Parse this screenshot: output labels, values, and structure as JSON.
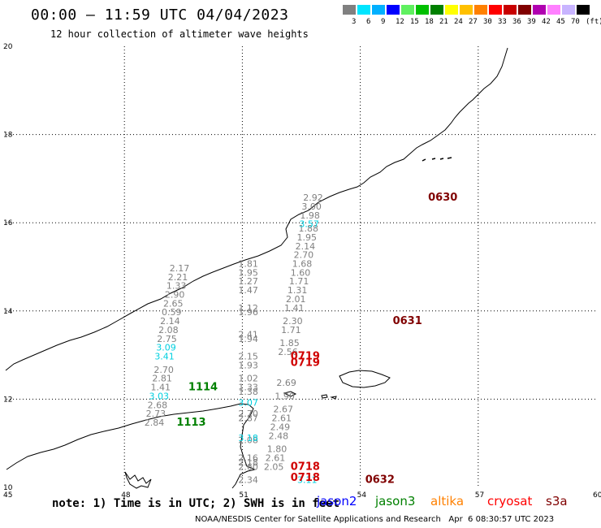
{
  "title": "00:00 – 11:59 UTC 04/04/2023",
  "subtitle": "12 hour collection of altimeter wave heights",
  "colorbar": {
    "colors": [
      "#808080",
      "#00e5ff",
      "#00b0ff",
      "#0000ff",
      "#5ff05f",
      "#00c000",
      "#008000",
      "#ffff00",
      "#ffc000",
      "#ff8000",
      "#ff0000",
      "#c80000",
      "#800000",
      "#b000b0",
      "#ff80ff",
      "#c8b4ff",
      "#000000"
    ],
    "labels": [
      "3",
      "6",
      "9",
      "12",
      "15",
      "18",
      "21",
      "24",
      "27",
      "30",
      "33",
      "36",
      "39",
      "42",
      "45",
      "70",
      "(ft)"
    ]
  },
  "axes": {
    "x_ticks": [
      "45",
      "48",
      "51",
      "54",
      "57",
      "60"
    ],
    "y_ticks": [
      "20",
      "18",
      "16",
      "14",
      "12",
      "10"
    ],
    "xlim": [
      45,
      60
    ],
    "ylim": [
      10,
      20
    ]
  },
  "tracks": [
    {
      "satellite": "cryosat",
      "color": "#808080",
      "points": [
        {
          "lon": 52.8,
          "lat": 16.5,
          "v": "2.92"
        },
        {
          "lon": 52.76,
          "lat": 16.3,
          "v": "3.00"
        },
        {
          "lon": 52.72,
          "lat": 16.1,
          "v": "1.98"
        },
        {
          "lon": 52.68,
          "lat": 15.8,
          "v": "1.88"
        },
        {
          "lon": 52.64,
          "lat": 15.6,
          "v": "1.95"
        },
        {
          "lon": 52.6,
          "lat": 15.4,
          "v": "2.14"
        },
        {
          "lon": 52.56,
          "lat": 15.2,
          "v": "2.70"
        },
        {
          "lon": 52.52,
          "lat": 15.0,
          "v": "1.68"
        },
        {
          "lon": 52.48,
          "lat": 14.8,
          "v": "1.60"
        },
        {
          "lon": 52.44,
          "lat": 14.6,
          "v": "1.71"
        },
        {
          "lon": 52.4,
          "lat": 14.4,
          "v": "1.31"
        },
        {
          "lon": 52.36,
          "lat": 14.2,
          "v": "2.01"
        },
        {
          "lon": 52.32,
          "lat": 14.0,
          "v": "1.41"
        },
        {
          "lon": 52.28,
          "lat": 13.7,
          "v": "2.30"
        },
        {
          "lon": 52.24,
          "lat": 13.5,
          "v": "1.71"
        },
        {
          "lon": 52.2,
          "lat": 13.2,
          "v": "1.85"
        },
        {
          "lon": 52.16,
          "lat": 13.0,
          "v": "2.56"
        },
        {
          "lon": 52.12,
          "lat": 12.3,
          "v": "2.69"
        },
        {
          "lon": 52.08,
          "lat": 12.0,
          "v": "1.90"
        },
        {
          "lon": 52.04,
          "lat": 11.7,
          "v": "2.67"
        },
        {
          "lon": 52.0,
          "lat": 11.5,
          "v": "2.61"
        },
        {
          "lon": 51.96,
          "lat": 11.3,
          "v": "2.49"
        },
        {
          "lon": 51.92,
          "lat": 11.1,
          "v": "2.48"
        },
        {
          "lon": 51.88,
          "lat": 10.8,
          "v": "1.80"
        },
        {
          "lon": 51.84,
          "lat": 10.6,
          "v": "2.61"
        },
        {
          "lon": 51.8,
          "lat": 10.4,
          "v": "2.05"
        }
      ]
    },
    {
      "satellite": "cryosat",
      "color": "#00d0e0",
      "points": [
        {
          "lon": 52.7,
          "lat": 15.9,
          "v": "3.57"
        }
      ]
    },
    {
      "satellite": "altika",
      "color": "#808080",
      "points": [
        {
          "lon": 49.4,
          "lat": 14.9,
          "v": "2.17"
        },
        {
          "lon": 49.36,
          "lat": 14.7,
          "v": "2.21"
        },
        {
          "lon": 49.32,
          "lat": 14.5,
          "v": "1.33"
        },
        {
          "lon": 49.28,
          "lat": 14.3,
          "v": "2.90"
        },
        {
          "lon": 49.24,
          "lat": 14.1,
          "v": "2.65"
        },
        {
          "lon": 49.2,
          "lat": 13.9,
          "v": "0.59"
        },
        {
          "lon": 49.16,
          "lat": 13.7,
          "v": "2.14"
        },
        {
          "lon": 49.12,
          "lat": 13.5,
          "v": "2.08"
        },
        {
          "lon": 49.08,
          "lat": 13.3,
          "v": "2.75"
        },
        {
          "lon": 49.0,
          "lat": 12.6,
          "v": "2.70"
        },
        {
          "lon": 48.96,
          "lat": 12.4,
          "v": "2.81"
        },
        {
          "lon": 48.92,
          "lat": 12.2,
          "v": "1.41"
        },
        {
          "lon": 48.84,
          "lat": 11.8,
          "v": "2.68"
        },
        {
          "lon": 48.8,
          "lat": 11.6,
          "v": "2.73"
        },
        {
          "lon": 48.76,
          "lat": 11.4,
          "v": "2.84"
        }
      ]
    },
    {
      "satellite": "altika",
      "color": "#00d0e0",
      "points": [
        {
          "lon": 49.06,
          "lat": 13.1,
          "v": "3.09"
        },
        {
          "lon": 49.02,
          "lat": 12.9,
          "v": "3.41"
        },
        {
          "lon": 48.88,
          "lat": 12.0,
          "v": "3.03"
        }
      ]
    },
    {
      "satellite": "jason3",
      "color": "#808080",
      "points": [
        {
          "lon": 51.15,
          "lat": 15.0,
          "v": "1.81"
        },
        {
          "lon": 51.15,
          "lat": 14.8,
          "v": "1.95"
        },
        {
          "lon": 51.15,
          "lat": 14.6,
          "v": "1.27"
        },
        {
          "lon": 51.15,
          "lat": 14.4,
          "v": "1.47"
        },
        {
          "lon": 51.15,
          "lat": 14.0,
          "v": "1.12"
        },
        {
          "lon": 51.15,
          "lat": 13.9,
          "v": "1.96"
        },
        {
          "lon": 51.15,
          "lat": 13.4,
          "v": "2.41"
        },
        {
          "lon": 51.15,
          "lat": 13.3,
          "v": "1.94"
        },
        {
          "lon": 51.15,
          "lat": 12.9,
          "v": "2.15"
        },
        {
          "lon": 51.15,
          "lat": 12.7,
          "v": "1.93"
        },
        {
          "lon": 51.15,
          "lat": 12.4,
          "v": "1.02"
        },
        {
          "lon": 51.15,
          "lat": 12.2,
          "v": "1.33"
        },
        {
          "lon": 51.15,
          "lat": 12.1,
          "v": "1.38"
        },
        {
          "lon": 51.15,
          "lat": 11.6,
          "v": "2.70"
        },
        {
          "lon": 51.15,
          "lat": 11.5,
          "v": "2.87"
        },
        {
          "lon": 51.15,
          "lat": 11.0,
          "v": "2.08"
        },
        {
          "lon": 51.15,
          "lat": 10.6,
          "v": "2.16"
        },
        {
          "lon": 51.15,
          "lat": 10.5,
          "v": "2.18"
        },
        {
          "lon": 51.15,
          "lat": 10.4,
          "v": "2.60"
        },
        {
          "lon": 51.15,
          "lat": 10.1,
          "v": "2.34"
        }
      ]
    },
    {
      "satellite": "jason3",
      "color": "#00d0e0",
      "points": [
        {
          "lon": 51.15,
          "lat": 11.85,
          "v": "3.07"
        },
        {
          "lon": 51.15,
          "lat": 11.05,
          "v": "3.18"
        },
        {
          "lon": 52.65,
          "lat": 10.1,
          "v": "3.11"
        }
      ]
    }
  ],
  "pass_times": [
    {
      "label": "0630",
      "color": "#800000",
      "lon": 56.1,
      "lat": 16.5
    },
    {
      "label": "0631",
      "color": "#800000",
      "lon": 55.2,
      "lat": 13.7
    },
    {
      "label": "0632",
      "color": "#800000",
      "lon": 54.5,
      "lat": 10.1
    },
    {
      "label": "0719",
      "color": "#d00000",
      "lon": 52.6,
      "lat": 12.9
    },
    {
      "label": "0719",
      "color": "#d00000",
      "lon": 52.6,
      "lat": 12.75
    },
    {
      "label": "0718",
      "color": "#d00000",
      "lon": 52.6,
      "lat": 10.4
    },
    {
      "label": "0718",
      "color": "#d00000",
      "lon": 52.6,
      "lat": 10.15
    },
    {
      "label": "1114",
      "color": "#008000",
      "lon": 50.0,
      "lat": 12.2
    },
    {
      "label": "1113",
      "color": "#008000",
      "lon": 49.7,
      "lat": 11.4
    }
  ],
  "notes": {
    "note_text": "note: 1) Time is in UTC; 2) SWH is in feet",
    "legend": [
      {
        "name": "jason2",
        "color": "#0000ff"
      },
      {
        "name": "jason3",
        "color": "#008000"
      },
      {
        "name": "altika",
        "color": "#ff8000"
      },
      {
        "name": "cryosat",
        "color": "#ff0000"
      },
      {
        "name": "s3a",
        "color": "#800000"
      }
    ]
  },
  "credit": "NOAA/NESDIS Center for Satellite Applications and Research   Apr  6 08:30:57 UTC 2023"
}
